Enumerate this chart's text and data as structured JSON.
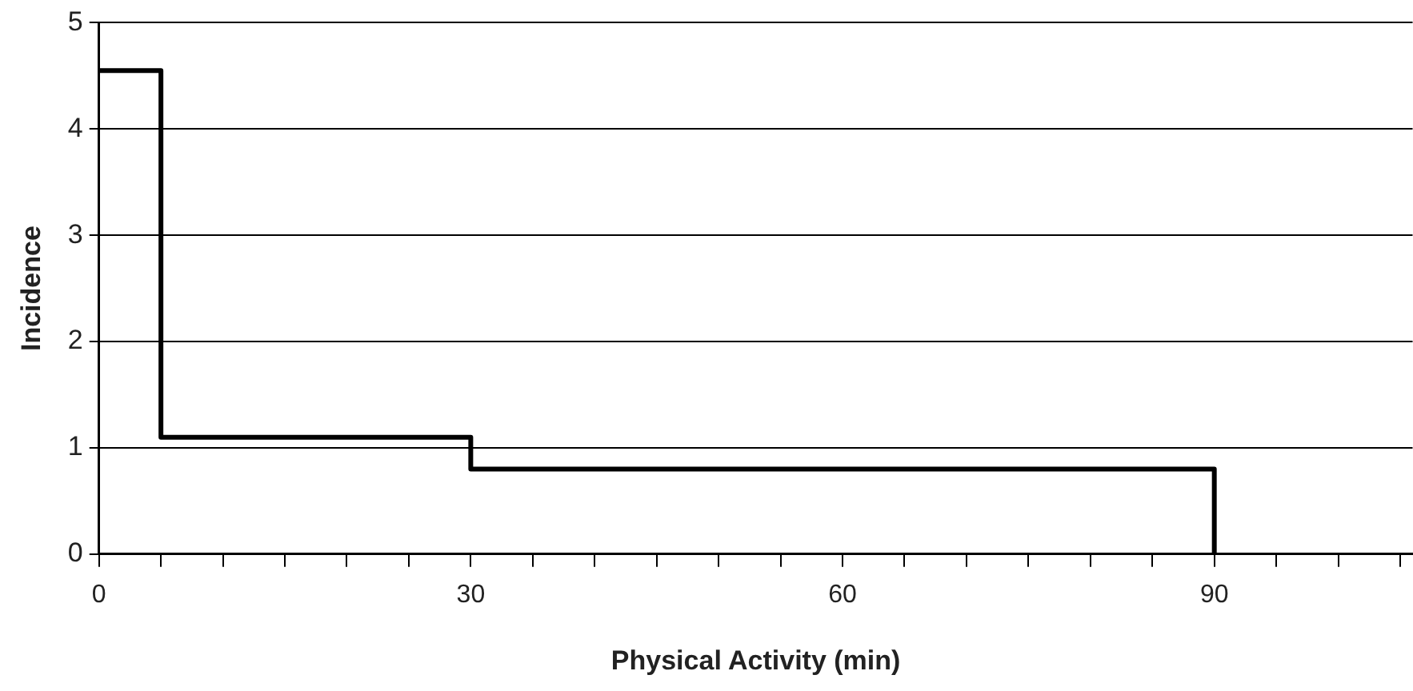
{
  "chart_data": {
    "type": "step",
    "xlabel": "Physical Activity (min)",
    "ylabel": "Incidence",
    "x": [
      0,
      5,
      30,
      90
    ],
    "series": [
      {
        "color": "#000000",
        "values": [
          4.55,
          1.1,
          0.8,
          0
        ]
      }
    ],
    "xlim": [
      0,
      106
    ],
    "xticks": [
      0,
      {
        "value": 5,
        "label": null
      },
      {
        "value": 10,
        "label": null
      },
      {
        "value": 15,
        "label": null
      },
      {
        "value": 20,
        "label": null
      },
      {
        "value": 25,
        "label": null
      },
      30,
      {
        "value": 35,
        "label": null
      },
      {
        "value": 40,
        "label": null
      },
      {
        "value": 45,
        "label": null
      },
      {
        "value": 50,
        "label": null
      },
      {
        "value": 55,
        "label": null
      },
      60,
      {
        "value": 65,
        "label": null
      },
      {
        "value": 70,
        "label": null
      },
      {
        "value": 75,
        "label": null
      },
      {
        "value": 80,
        "label": null
      },
      {
        "value": 85,
        "label": null
      },
      90,
      {
        "value": 95,
        "label": null
      },
      {
        "value": 100,
        "label": null
      },
      {
        "value": 105,
        "label": null
      }
    ],
    "ylim": [
      0,
      5
    ],
    "yticks": [
      0,
      1,
      2,
      3,
      4,
      5
    ],
    "grid": "y",
    "legend": false,
    "marker": "none",
    "line_style": "solid"
  }
}
